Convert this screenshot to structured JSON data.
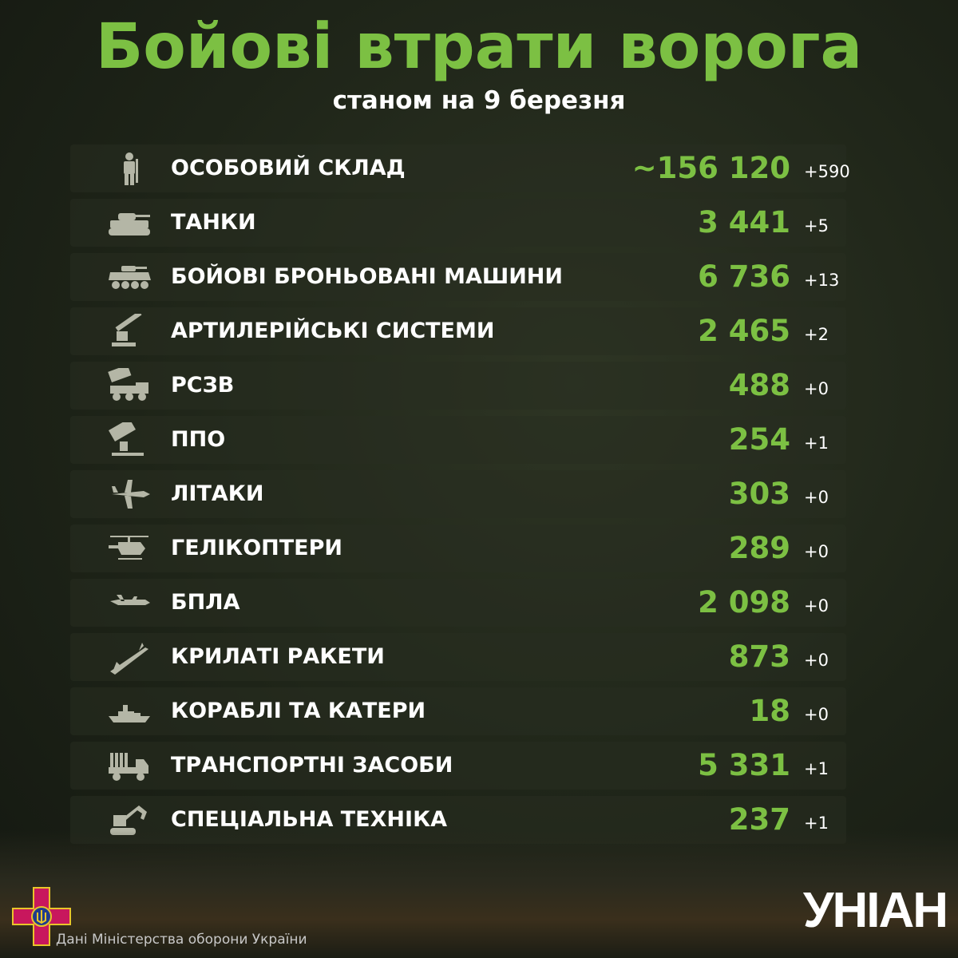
{
  "header": {
    "title": "Бойові втрати ворога",
    "subtitle": "станом на 9 березня"
  },
  "accent_color": "#7cc043",
  "rows": [
    {
      "icon": "soldier-icon",
      "label": "ОСОБОВИЙ СКЛАД",
      "value": "~156 120",
      "delta": "+590"
    },
    {
      "icon": "tank-icon",
      "label": "ТАНКИ",
      "value": "3 441",
      "delta": "+5"
    },
    {
      "icon": "armored-vehicle-icon",
      "label": "БОЙОВІ БРОНЬОВАНІ МАШИНИ",
      "value": "6 736",
      "delta": "+13"
    },
    {
      "icon": "artillery-icon",
      "label": "АРТИЛЕРІЙСЬКІ СИСТЕМИ",
      "value": "2 465",
      "delta": "+2"
    },
    {
      "icon": "mlrs-icon",
      "label": "РСЗВ",
      "value": "488",
      "delta": "+0"
    },
    {
      "icon": "air-defense-icon",
      "label": "ППО",
      "value": "254",
      "delta": "+1"
    },
    {
      "icon": "plane-icon",
      "label": "ЛІТАКИ",
      "value": "303",
      "delta": "+0"
    },
    {
      "icon": "helicopter-icon",
      "label": "ГЕЛІКОПТЕРИ",
      "value": "289",
      "delta": "+0"
    },
    {
      "icon": "drone-icon",
      "label": "БПЛА",
      "value": "2 098",
      "delta": "+0"
    },
    {
      "icon": "missile-icon",
      "label": "КРИЛАТІ РАКЕТИ",
      "value": "873",
      "delta": "+0"
    },
    {
      "icon": "ship-icon",
      "label": "КОРАБЛІ ТА КАТЕРИ",
      "value": "18",
      "delta": "+0"
    },
    {
      "icon": "truck-icon",
      "label": "ТРАНСПОРТНІ ЗАСОБИ",
      "value": "5 331",
      "delta": "+1"
    },
    {
      "icon": "excavator-icon",
      "label": "СПЕЦІАЛЬНА ТЕХНІКА",
      "value": "237",
      "delta": "+1"
    }
  ],
  "footer": {
    "source": "Дані Міністерства оборони України",
    "logo": "УНІАН"
  }
}
